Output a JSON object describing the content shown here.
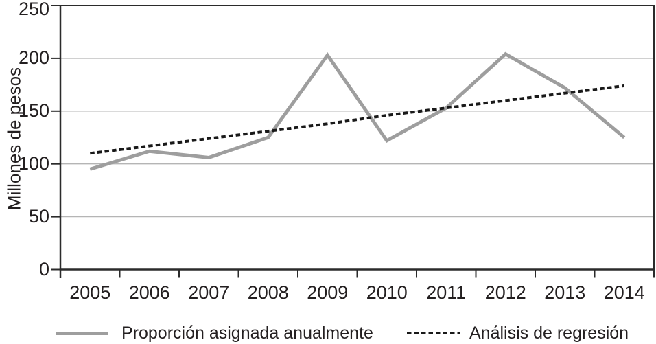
{
  "chart_data": {
    "type": "line",
    "title": "",
    "xlabel": "",
    "ylabel": "Millones de pesos",
    "x_labels": [
      "2005",
      "2006",
      "2007",
      "2008",
      "2009",
      "2010",
      "2011",
      "2012",
      "2013",
      "2014"
    ],
    "ylim": [
      0,
      250
    ],
    "yticks": [
      0,
      50,
      100,
      150,
      200,
      250
    ],
    "grid": true,
    "legend_position": "bottom",
    "series": [
      {
        "name": "Proporción asignada anualmente",
        "style": "solid",
        "color": "#9e9e9e",
        "values": [
          95,
          112,
          106,
          125,
          203,
          122,
          153,
          204,
          172,
          125
        ]
      },
      {
        "name": "Análisis de regresión",
        "style": "dotted",
        "color": "#191919",
        "values": [
          110,
          117,
          124,
          131,
          138,
          146,
          153,
          160,
          167,
          174
        ]
      }
    ]
  },
  "colors": {
    "axis": "#2b2b2b",
    "grid": "#b5b5b5",
    "text": "#231f20",
    "background": "#ffffff"
  }
}
